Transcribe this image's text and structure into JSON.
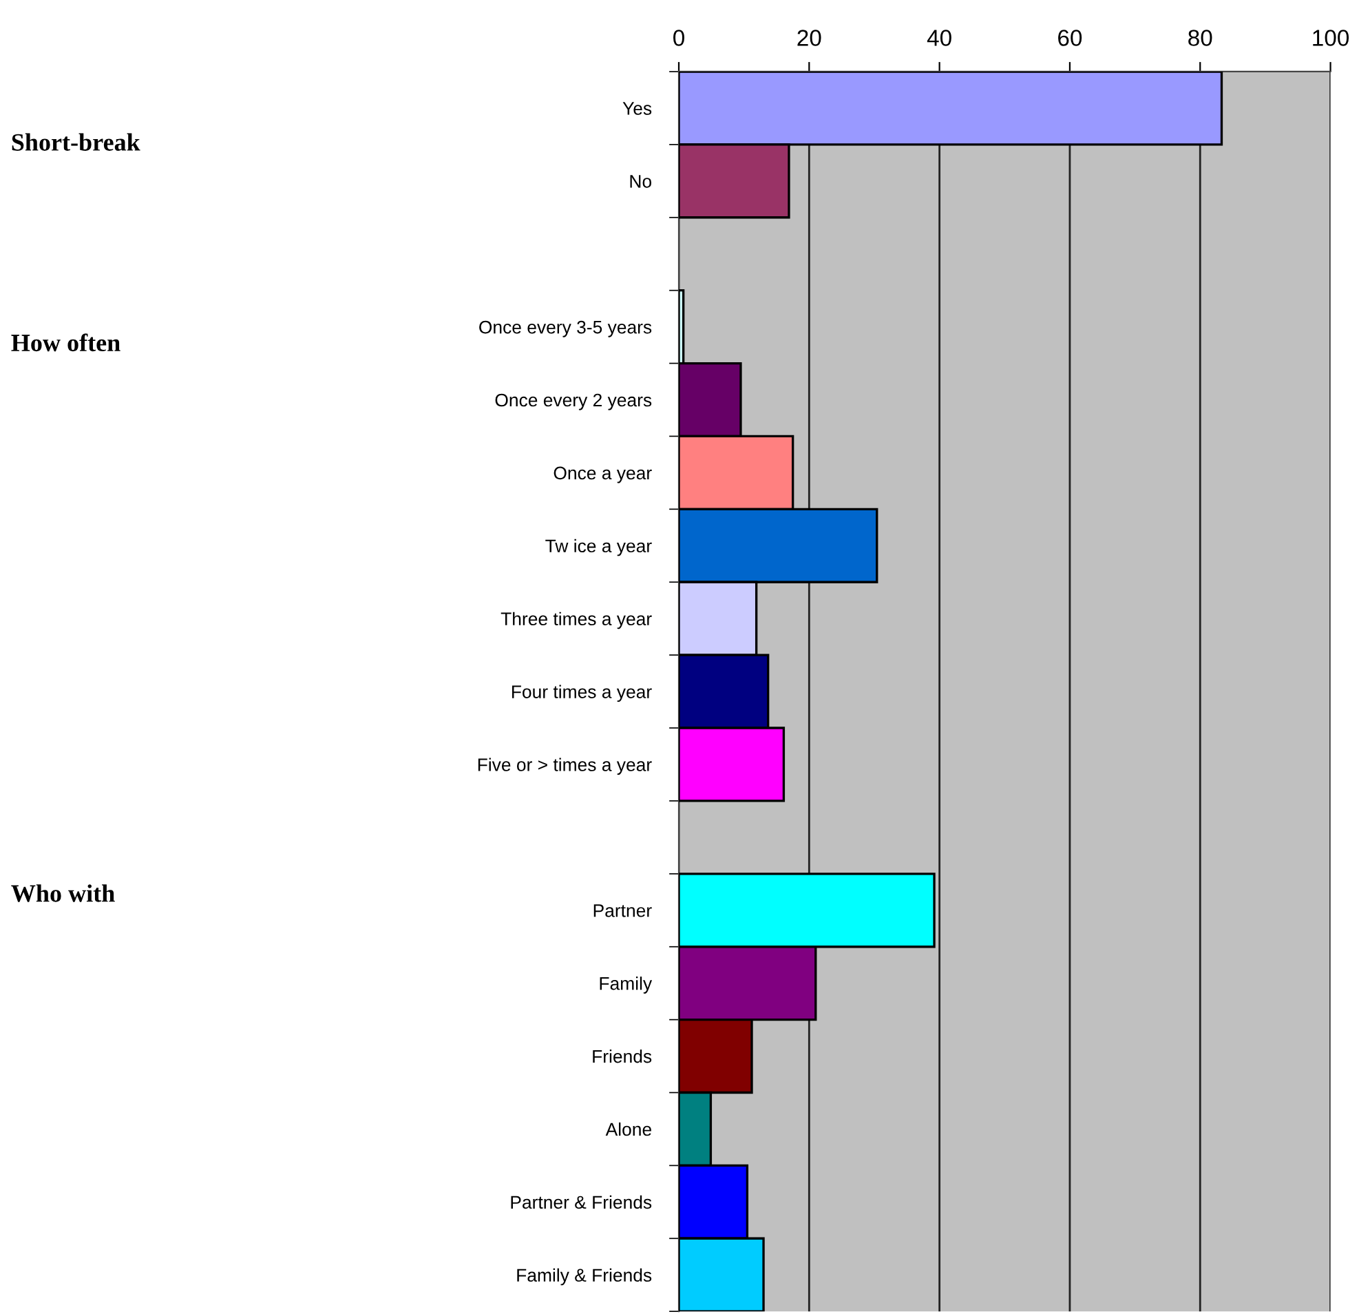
{
  "chart_data": {
    "type": "bar",
    "orientation": "horizontal",
    "categories": [
      "Yes",
      "No",
      null,
      "Once every 3-5 years",
      "Once every 2 years",
      "Once a year",
      "Tw ice a year",
      "Three times a year",
      "Four times a year",
      "Five or > times a year",
      null,
      "Partner",
      "Family",
      "Friends",
      "Alone",
      "Partner & Friends",
      "Family & Friends"
    ],
    "values": [
      83.3,
      16.9,
      null,
      0.7,
      9.5,
      17.5,
      30.4,
      11.9,
      13.7,
      16.1,
      null,
      39.2,
      21.0,
      11.2,
      4.9,
      10.5,
      13.0
    ],
    "colors": [
      "#9999ff",
      "#993366",
      null,
      "#ccffff",
      "#660066",
      "#ff8080",
      "#0066cc",
      "#ccccff",
      "#000080",
      "#ff00ff",
      null,
      "#00ffff",
      "#800080",
      "#800000",
      "#008080",
      "#0000ff",
      "#00ccff"
    ],
    "xlim": [
      0,
      100
    ],
    "xticks": [
      0,
      20,
      40,
      60,
      80,
      100
    ],
    "grid": "x",
    "annotations": [
      "Short-break",
      "How often",
      "Who with"
    ]
  }
}
